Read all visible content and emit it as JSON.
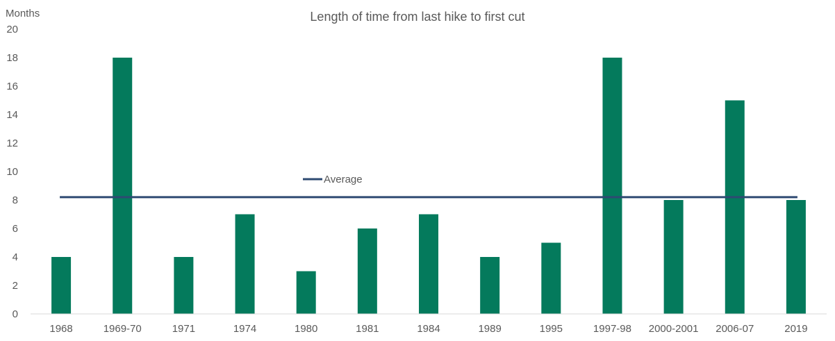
{
  "chart_data": {
    "type": "bar",
    "title": "Length of time from last hike to first cut",
    "ylabel": "Months",
    "xlabel": "",
    "ylim": [
      0,
      20
    ],
    "yticks": [
      0,
      2,
      4,
      6,
      8,
      10,
      12,
      14,
      16,
      18,
      20
    ],
    "categories": [
      "1968",
      "1969-70",
      "1971",
      "1974",
      "1980",
      "1981",
      "1984",
      "1989",
      "1995",
      "1997-98",
      "2000-2001",
      "2006-07",
      "2019"
    ],
    "series": [
      {
        "values": [
          4,
          18,
          4,
          7,
          3,
          6,
          7,
          4,
          5,
          18,
          8,
          15,
          8
        ],
        "color": "#047a5c"
      }
    ],
    "average": {
      "name": "Average",
      "value": 8.2,
      "color": "#2e4a72"
    },
    "legend_position": "center",
    "grid": false
  }
}
